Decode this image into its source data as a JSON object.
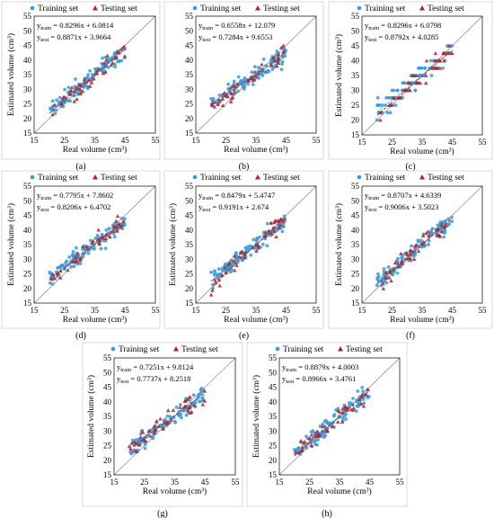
{
  "chart_data": [
    {
      "type": "scatter",
      "panel": "(a)",
      "xlabel": "Real volume (cm³)",
      "ylabel": "Estimated volume (cm³)",
      "xlim": [
        15,
        55
      ],
      "ylim": [
        15,
        55
      ],
      "xticks": [
        15,
        25,
        35,
        45,
        55
      ],
      "yticks": [
        15,
        20,
        25,
        30,
        35,
        40,
        45,
        50,
        55
      ],
      "grid": false,
      "legend": "top",
      "series": [
        {
          "name": "Training set",
          "color": "#3a9ad9",
          "marker": "circle",
          "fit": {
            "slope": 0.8296,
            "intercept": 6.0814
          }
        },
        {
          "name": "Testing set",
          "color": "#b22222",
          "marker": "triangle",
          "fit": {
            "slope": 0.8871,
            "intercept": 3.9664
          }
        }
      ],
      "equations": [
        {
          "y": "y",
          "sub": "train",
          "rhs": " = 0.8296x + 6.0814"
        },
        {
          "y": "y",
          "sub": "test",
          "rhs": " = 0.8871x + 3.9664"
        }
      ]
    },
    {
      "type": "scatter",
      "panel": "(b)",
      "xlabel": "Real volume (cm³)",
      "ylabel": "",
      "xlim": [
        15,
        55
      ],
      "ylim": [
        15,
        55
      ],
      "xticks": [
        15,
        25,
        35,
        45,
        55
      ],
      "yticks": [
        15,
        20,
        25,
        30,
        35,
        40,
        45,
        50,
        55
      ],
      "grid": false,
      "legend": "top",
      "series": [
        {
          "name": "Training set",
          "color": "#3a9ad9",
          "marker": "circle",
          "fit": {
            "slope": 0.6558,
            "intercept": 12.079
          }
        },
        {
          "name": "Testing set",
          "color": "#b22222",
          "marker": "triangle",
          "fit": {
            "slope": 0.7284,
            "intercept": 9.6553
          }
        }
      ],
      "equations": [
        {
          "y": "y",
          "sub": "train",
          "rhs": " = 0.6558x + 12.079"
        },
        {
          "y": "y",
          "sub": "test",
          "rhs": " = 0.7284x + 9.6553"
        }
      ]
    },
    {
      "type": "scatter",
      "panel": "(c)",
      "xlabel": "Real volume (cm³)",
      "ylabel": "Estimated volume (cm³)",
      "xlim": [
        15,
        55
      ],
      "ylim": [
        15,
        55
      ],
      "xticks": [
        15,
        25,
        35,
        45,
        55
      ],
      "yticks": [
        15,
        20,
        25,
        30,
        35,
        40,
        45,
        50,
        55
      ],
      "grid": false,
      "legend": "top",
      "series": [
        {
          "name": "Training set",
          "color": "#3a9ad9",
          "marker": "circle",
          "fit": {
            "slope": 0.8296,
            "intercept": 6.0798
          }
        },
        {
          "name": "Testing set",
          "color": "#b22222",
          "marker": "triangle",
          "fit": {
            "slope": 0.8792,
            "intercept": 4.0285
          }
        }
      ],
      "equations": [
        {
          "y": "y",
          "sub": "train",
          "rhs": " = 0.8296x + 6.0798"
        },
        {
          "y": "y",
          "sub": "test",
          "rhs": " = 0.8792x + 4.0285"
        }
      ]
    },
    {
      "type": "scatter",
      "panel": "(d)",
      "xlabel": "Real volume (cm³)",
      "ylabel": "Estimated volume (cm³)",
      "xlim": [
        15,
        55
      ],
      "ylim": [
        15,
        55
      ],
      "xticks": [
        15,
        25,
        35,
        45,
        55
      ],
      "yticks": [
        15,
        20,
        25,
        30,
        35,
        40,
        45,
        50,
        55
      ],
      "grid": false,
      "legend": "top",
      "series": [
        {
          "name": "Training set",
          "color": "#3a9ad9",
          "marker": "circle",
          "fit": {
            "slope": 0.7795,
            "intercept": 7.8602
          }
        },
        {
          "name": "Testing set",
          "color": "#b22222",
          "marker": "triangle",
          "fit": {
            "slope": 0.8206,
            "intercept": 6.4702
          }
        }
      ],
      "equations": [
        {
          "y": "y",
          "sub": "train",
          "rhs": " = 0.7795x + 7.8602"
        },
        {
          "y": "y",
          "sub": "test",
          "rhs": " = 0.8206x + 6.4702"
        }
      ]
    },
    {
      "type": "scatter",
      "panel": "(e)",
      "xlabel": "Real volume (cm³)",
      "ylabel": "Estimated volume (cm³)",
      "xlim": [
        15,
        55
      ],
      "ylim": [
        15,
        55
      ],
      "xticks": [
        15,
        25,
        35,
        45,
        55
      ],
      "yticks": [
        15,
        20,
        25,
        30,
        35,
        40,
        45,
        50,
        55
      ],
      "grid": false,
      "legend": "top",
      "series": [
        {
          "name": "Training set",
          "color": "#3a9ad9",
          "marker": "circle",
          "fit": {
            "slope": 0.8479,
            "intercept": 5.4747
          }
        },
        {
          "name": "Testing set",
          "color": "#b22222",
          "marker": "triangle",
          "fit": {
            "slope": 0.9191,
            "intercept": 2.674
          }
        }
      ],
      "equations": [
        {
          "y": "y",
          "sub": "train",
          "rhs": " = 0.8479x + 5.4747"
        },
        {
          "y": "y",
          "sub": "test",
          "rhs": " = 0.9191x + 2.674"
        }
      ]
    },
    {
      "type": "scatter",
      "panel": "(f)",
      "xlabel": "Real volume (cm³)",
      "ylabel": "Estimated volume (cm³)",
      "xlim": [
        15,
        55
      ],
      "ylim": [
        15,
        55
      ],
      "xticks": [
        15,
        25,
        35,
        45,
        55
      ],
      "yticks": [
        15,
        20,
        25,
        30,
        35,
        40,
        45,
        50,
        55
      ],
      "grid": false,
      "legend": "top",
      "series": [
        {
          "name": "Training set",
          "color": "#3a9ad9",
          "marker": "circle",
          "fit": {
            "slope": 0.8707,
            "intercept": 4.6339
          }
        },
        {
          "name": "Testing set",
          "color": "#b22222",
          "marker": "triangle",
          "fit": {
            "slope": 0.9006,
            "intercept": 3.5023
          }
        }
      ],
      "equations": [
        {
          "y": "y",
          "sub": "train",
          "rhs": " = 0.8707x + 4.6339"
        },
        {
          "y": "y",
          "sub": "test",
          "rhs": " = 0.9006x + 3.5023"
        }
      ]
    },
    {
      "type": "scatter",
      "panel": "(g)",
      "xlabel": "Real volume (cm³)",
      "ylabel": "Estimated volume (cm³)",
      "xlim": [
        15,
        55
      ],
      "ylim": [
        15,
        55
      ],
      "xticks": [
        15,
        25,
        35,
        45,
        55
      ],
      "yticks": [
        15,
        20,
        25,
        30,
        35,
        40,
        45,
        50,
        55
      ],
      "grid": false,
      "legend": "top",
      "series": [
        {
          "name": "Training set",
          "color": "#3a9ad9",
          "marker": "circle",
          "fit": {
            "slope": 0.7251,
            "intercept": 9.8124
          }
        },
        {
          "name": "Testing set",
          "color": "#b22222",
          "marker": "triangle",
          "fit": {
            "slope": 0.7737,
            "intercept": 8.2518
          }
        }
      ],
      "equations": [
        {
          "y": "y",
          "sub": "train",
          "rhs": " = 0.7251x + 9.8124"
        },
        {
          "y": "y",
          "sub": "test",
          "rhs": " = 0.7737x + 8.2518"
        }
      ]
    },
    {
      "type": "scatter",
      "panel": "(h)",
      "xlabel": "Real volume (cm³)",
      "ylabel": "Estimated volume (cm³)",
      "xlim": [
        15,
        55
      ],
      "ylim": [
        15,
        55
      ],
      "xticks": [
        15,
        25,
        35,
        45,
        55
      ],
      "yticks": [
        15,
        20,
        25,
        30,
        35,
        40,
        45,
        50,
        55
      ],
      "grid": false,
      "legend": "top",
      "series": [
        {
          "name": "Training set",
          "color": "#3a9ad9",
          "marker": "circle",
          "fit": {
            "slope": 0.8879,
            "intercept": 4.0003
          }
        },
        {
          "name": "Testing set",
          "color": "#b22222",
          "marker": "triangle",
          "fit": {
            "slope": 0.8966,
            "intercept": 3.4761
          }
        }
      ],
      "equations": [
        {
          "y": "y",
          "sub": "train",
          "rhs": " = 0.8879x + 4.0003"
        },
        {
          "y": "y",
          "sub": "test",
          "rhs": " = 0.8966x + 3.4761"
        }
      ]
    }
  ]
}
